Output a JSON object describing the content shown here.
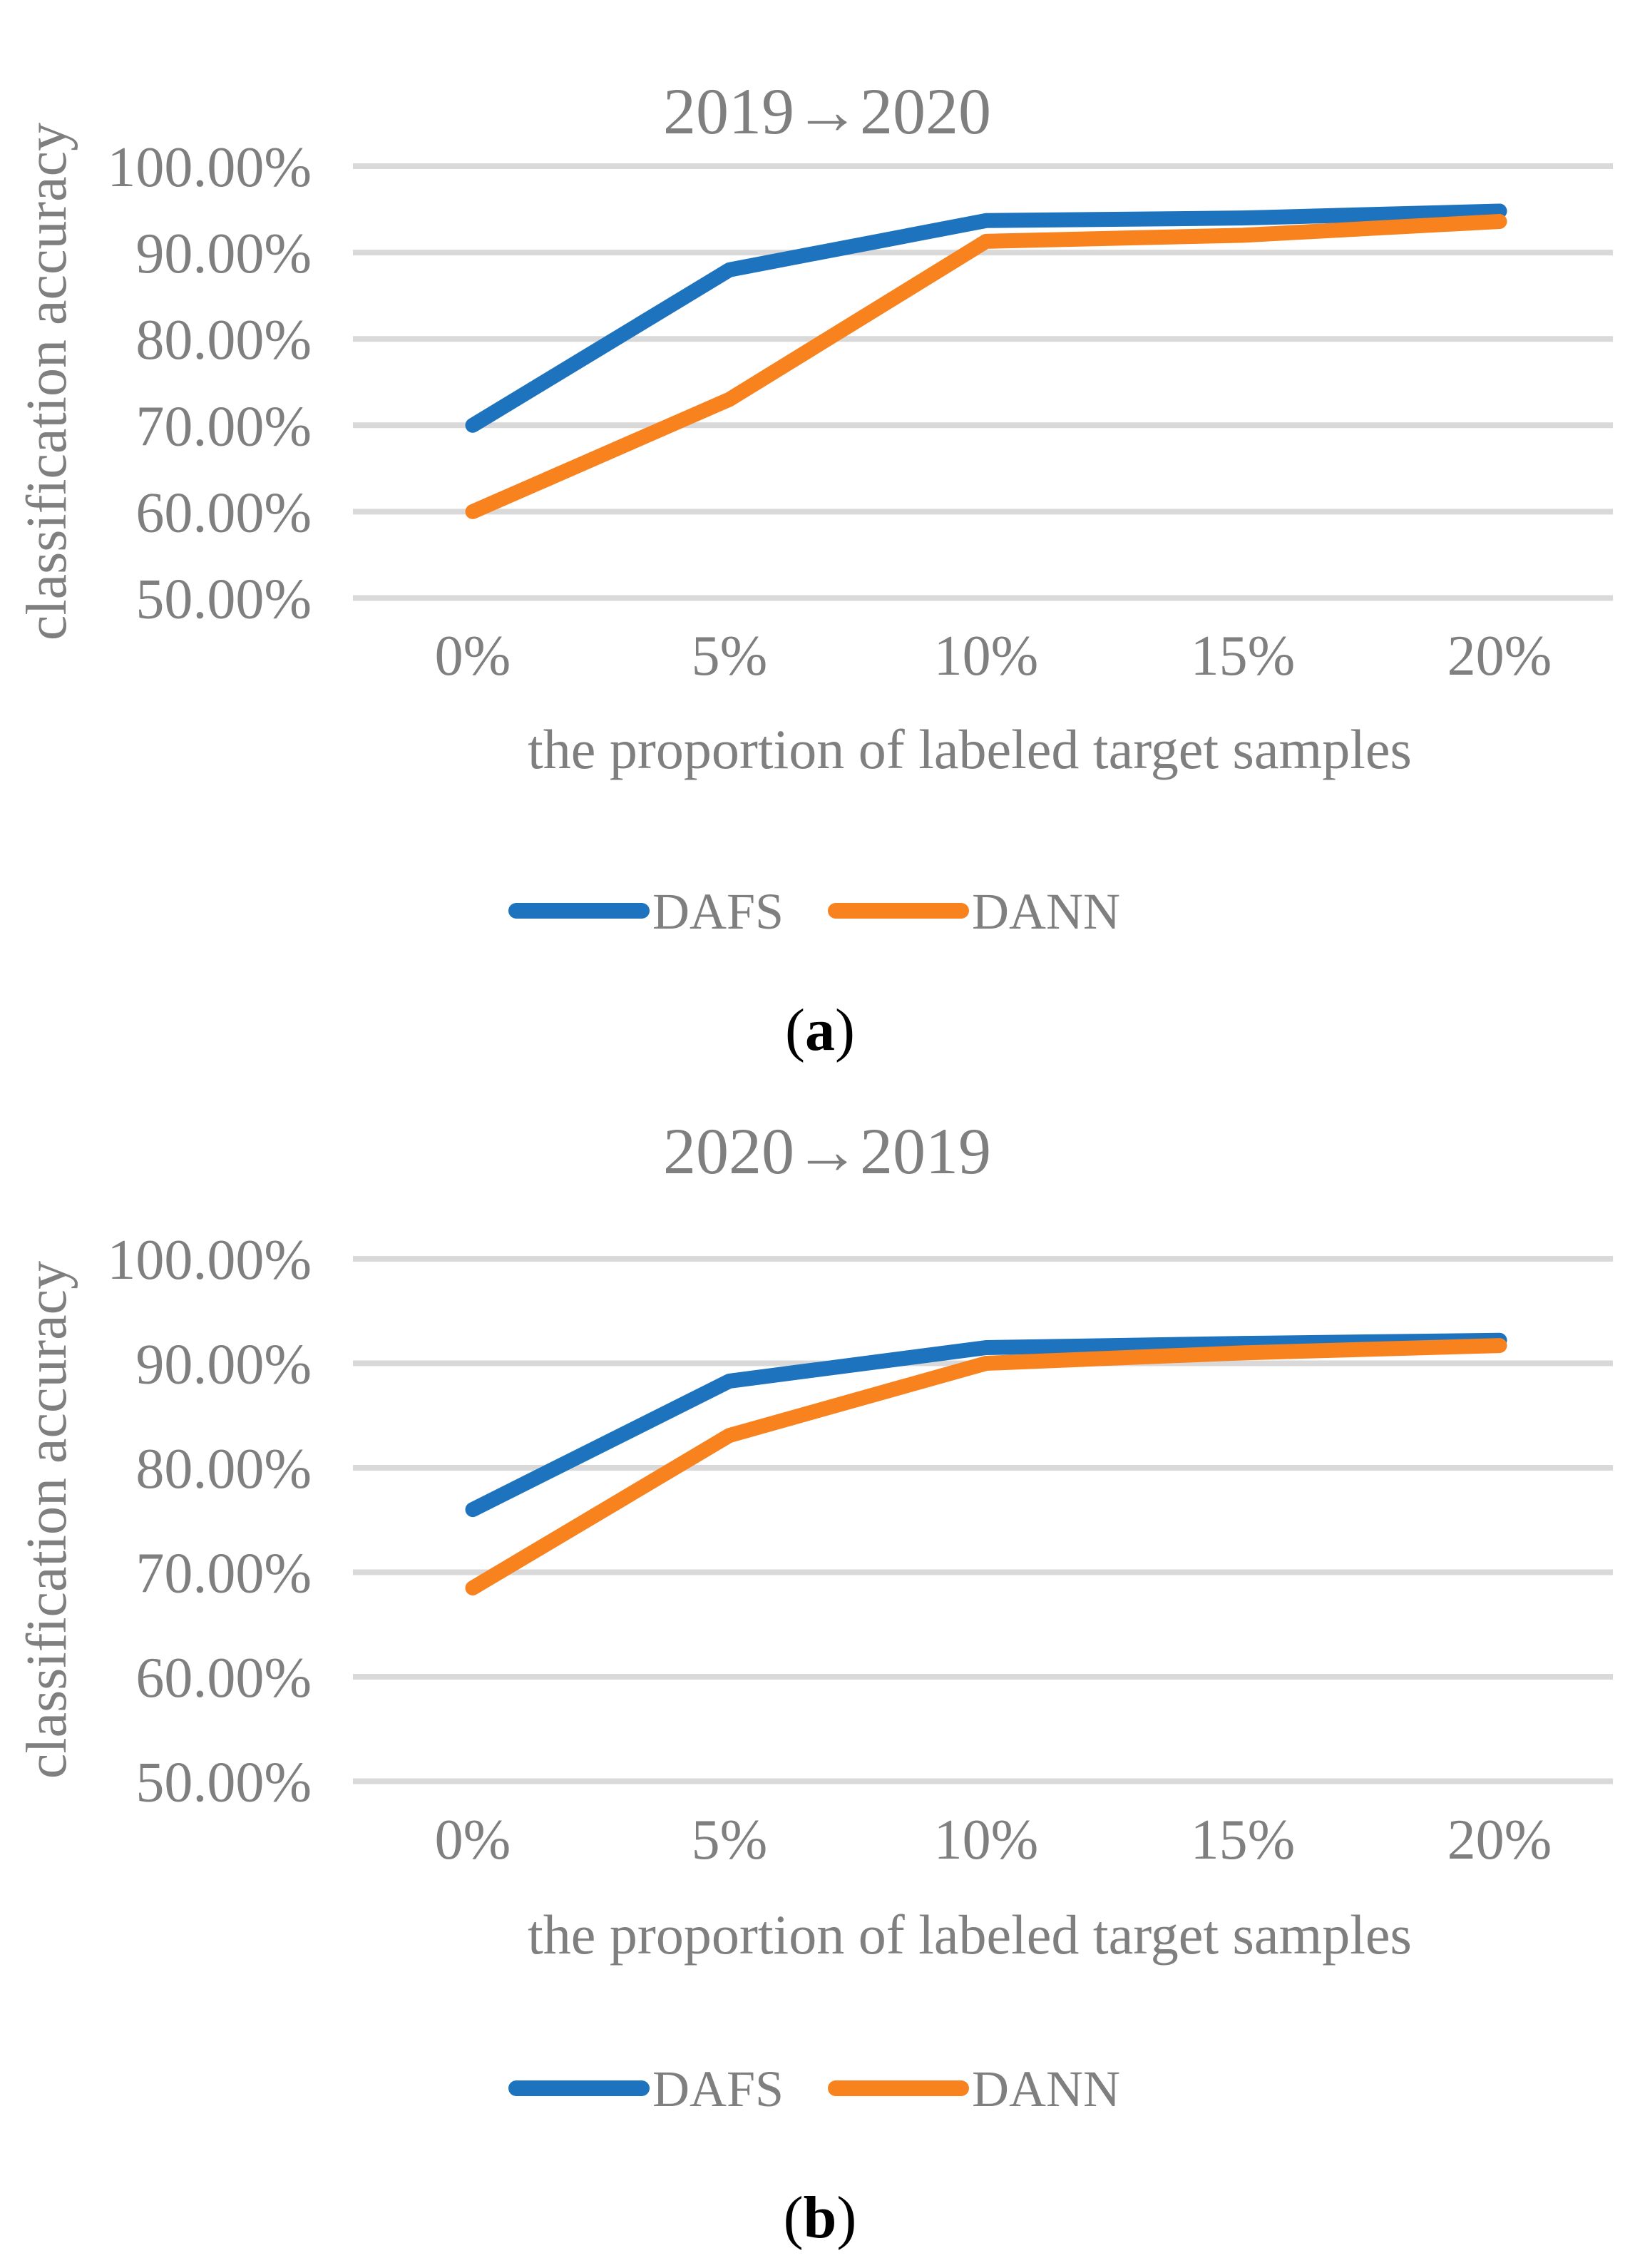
{
  "page": {
    "background": "#FFFFFF"
  },
  "colors": {
    "grid": "#D9D9D9",
    "text_gray": "#7F7F7F",
    "caption_black": "#000000",
    "dafs_blue": "#1E73BE",
    "dann_orange": "#F8821E"
  },
  "chart_data": [
    {
      "id": "a",
      "type": "line",
      "title": "2019→2020",
      "caption_open": "(",
      "caption_letter": "a",
      "caption_close": ")",
      "xlabel": "the proportion of labeled target samples",
      "ylabel": "classification accuracy",
      "x_tick_labels": [
        "0%",
        "5%",
        "10%",
        "15%",
        "20%"
      ],
      "x_values": [
        0,
        5,
        10,
        15,
        20
      ],
      "y_tick_labels": [
        "100.00%",
        "90.00%",
        "80.00%",
        "70.00%",
        "60.00%",
        "50.00%"
      ],
      "ylim": [
        50,
        100
      ],
      "grid": true,
      "legend_position": "bottom",
      "series": [
        {
          "name": "DAFS",
          "color": "#1E73BE",
          "values": [
            70.0,
            88.0,
            93.7,
            94.0,
            94.8
          ]
        },
        {
          "name": "DANN",
          "color": "#F8821E",
          "values": [
            60.0,
            73.0,
            91.3,
            92.0,
            93.6
          ]
        }
      ]
    },
    {
      "id": "b",
      "type": "line",
      "title": "2020→2019",
      "caption_open": "(",
      "caption_letter": "b",
      "caption_close": ")",
      "xlabel": "the proportion of labeled target samples",
      "ylabel": "classification accuracy",
      "x_tick_labels": [
        "0%",
        "5%",
        "10%",
        "15%",
        "20%"
      ],
      "x_values": [
        0,
        5,
        10,
        15,
        20
      ],
      "y_tick_labels": [
        "100.00%",
        "90.00%",
        "80.00%",
        "70.00%",
        "60.00%",
        "50.00%"
      ],
      "ylim": [
        50,
        100
      ],
      "grid": true,
      "legend_position": "bottom",
      "series": [
        {
          "name": "DAFS",
          "color": "#1E73BE",
          "values": [
            76.0,
            88.3,
            91.5,
            91.9,
            92.2
          ]
        },
        {
          "name": "DANN",
          "color": "#F8821E",
          "values": [
            68.5,
            83.1,
            90.0,
            91.0,
            91.7
          ]
        }
      ]
    }
  ]
}
